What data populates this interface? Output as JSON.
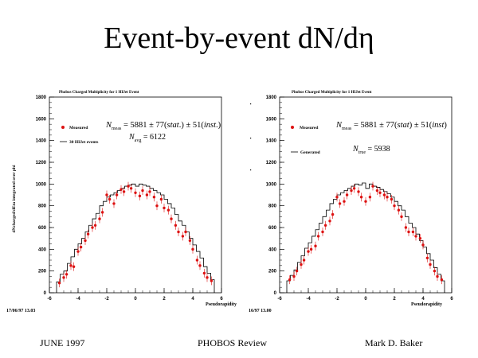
{
  "slide": {
    "title": "Event-by-event dN/dη",
    "footer_left": "JUNE 1997",
    "footer_center": "PHOBOS Review",
    "footer_right": "Mark D. Baker"
  },
  "colors": {
    "measured": "#dd1111",
    "line": "#000000"
  },
  "chart_data": [
    {
      "type": "scatter",
      "title": "Phobos Charged Multiplicity for 1 HIJet Event",
      "ylabel": "dNcharged/dEta integrated over phi",
      "xlabel": "Pseudorapidity",
      "xlim": [
        -6,
        6
      ],
      "ylim": [
        0,
        1800
      ],
      "x_ticks": [
        "-6",
        "-4",
        "-2",
        "0",
        "2",
        "4",
        "6"
      ],
      "y_ticks": [
        "0",
        "200",
        "400",
        "600",
        "800",
        "1000",
        "1200",
        "1400",
        "1600",
        "1800"
      ],
      "legend": {
        "position": "top-left",
        "entries": [
          "Measured",
          "30 HIJet events"
        ]
      },
      "annotations": [
        "N_meas = 5881 ± 77(stat.) ± 51(inst.)",
        "N_avg = 6122"
      ],
      "corner_label": "17/06/97  13.03",
      "series": [
        {
          "name": "Measured",
          "kind": "points",
          "x": [
            -5.3,
            -5.0,
            -4.8,
            -4.5,
            -4.3,
            -4.0,
            -3.8,
            -3.5,
            -3.3,
            -3.0,
            -2.8,
            -2.5,
            -2.3,
            -2.0,
            -1.8,
            -1.5,
            -1.3,
            -1.0,
            -0.8,
            -0.5,
            -0.3,
            0.0,
            0.3,
            0.5,
            0.8,
            1.0,
            1.3,
            1.5,
            1.8,
            2.0,
            2.3,
            2.5,
            2.8,
            3.0,
            3.3,
            3.5,
            3.8,
            4.0,
            4.3,
            4.5,
            4.8,
            5.0,
            5.3
          ],
          "y": [
            90,
            140,
            170,
            250,
            240,
            380,
            420,
            480,
            540,
            600,
            620,
            680,
            740,
            900,
            860,
            820,
            900,
            950,
            930,
            980,
            960,
            920,
            890,
            940,
            900,
            930,
            880,
            800,
            860,
            780,
            760,
            680,
            620,
            560,
            520,
            560,
            480,
            400,
            300,
            250,
            180,
            140,
            110
          ]
        },
        {
          "name": "30 HIJet events",
          "kind": "step",
          "x": [
            -5.5,
            -5.25,
            -5.0,
            -4.75,
            -4.5,
            -4.25,
            -4.0,
            -3.75,
            -3.5,
            -3.25,
            -3.0,
            -2.75,
            -2.5,
            -2.25,
            -2.0,
            -1.75,
            -1.5,
            -1.25,
            -1.0,
            -0.75,
            -0.5,
            -0.25,
            0.0,
            0.25,
            0.5,
            0.75,
            1.0,
            1.25,
            1.5,
            1.75,
            2.0,
            2.25,
            2.5,
            2.75,
            3.0,
            3.25,
            3.5,
            3.75,
            4.0,
            4.25,
            4.5,
            4.75,
            5.0,
            5.25
          ],
          "y": [
            100,
            170,
            200,
            270,
            330,
            400,
            450,
            500,
            560,
            620,
            680,
            730,
            800,
            840,
            880,
            900,
            920,
            940,
            960,
            980,
            990,
            1000,
            980,
            1000,
            990,
            980,
            960,
            940,
            920,
            900,
            860,
            820,
            780,
            720,
            660,
            620,
            560,
            500,
            440,
            380,
            320,
            240,
            180,
            120
          ]
        }
      ]
    },
    {
      "type": "scatter",
      "title": "Phobos Charged Multiplicity for 1 HIJet Event",
      "xlabel": "Pseudorapidity",
      "xlim": [
        -6,
        6
      ],
      "ylim": [
        0,
        1800
      ],
      "x_ticks": [
        "-6",
        "-4",
        "-2",
        "0",
        "2",
        "4",
        "6"
      ],
      "y_ticks": [
        "0",
        "200",
        "400",
        "600",
        "800",
        "1000",
        "1200",
        "1400",
        "1600",
        "1800"
      ],
      "legend": {
        "position": "top-left",
        "entries": [
          "Measured",
          "Generated"
        ]
      },
      "annotations": [
        "N_meas = 5881 ± 77(stat) ± 51(inst)",
        "N_true = 5938"
      ],
      "corner_label": "16/97  13.00",
      "series": [
        {
          "name": "Measured",
          "kind": "points",
          "x": [
            -5.3,
            -5.0,
            -4.8,
            -4.5,
            -4.3,
            -4.0,
            -3.8,
            -3.5,
            -3.3,
            -3.0,
            -2.8,
            -2.5,
            -2.3,
            -2.0,
            -1.8,
            -1.5,
            -1.3,
            -1.0,
            -0.8,
            -0.5,
            -0.3,
            0.0,
            0.3,
            0.5,
            0.8,
            1.0,
            1.3,
            1.5,
            1.8,
            2.0,
            2.3,
            2.5,
            2.8,
            3.0,
            3.3,
            3.5,
            3.8,
            4.0,
            4.3,
            4.5,
            4.8,
            5.0,
            5.3
          ],
          "y": [
            120,
            150,
            200,
            260,
            300,
            380,
            400,
            430,
            520,
            560,
            620,
            660,
            720,
            880,
            820,
            840,
            900,
            940,
            960,
            930,
            880,
            840,
            880,
            980,
            940,
            920,
            900,
            880,
            860,
            800,
            760,
            700,
            600,
            560,
            560,
            520,
            500,
            440,
            320,
            260,
            200,
            150,
            120
          ]
        },
        {
          "name": "Generated",
          "kind": "step",
          "x": [
            -5.5,
            -5.25,
            -5.0,
            -4.75,
            -4.5,
            -4.25,
            -4.0,
            -3.75,
            -3.5,
            -3.25,
            -3.0,
            -2.75,
            -2.5,
            -2.25,
            -2.0,
            -1.75,
            -1.5,
            -1.25,
            -1.0,
            -0.75,
            -0.5,
            -0.25,
            0.0,
            0.25,
            0.5,
            0.75,
            1.0,
            1.25,
            1.5,
            1.75,
            2.0,
            2.25,
            2.5,
            2.75,
            3.0,
            3.25,
            3.5,
            3.75,
            4.0,
            4.25,
            4.5,
            4.75,
            5.0,
            5.25
          ],
          "y": [
            110,
            160,
            210,
            280,
            340,
            410,
            460,
            520,
            580,
            640,
            700,
            760,
            820,
            860,
            900,
            920,
            940,
            960,
            980,
            1000,
            990,
            1010,
            960,
            1000,
            980,
            970,
            950,
            930,
            910,
            880,
            840,
            800,
            760,
            700,
            640,
            600,
            540,
            480,
            420,
            360,
            300,
            230,
            170,
            110
          ]
        }
      ]
    }
  ]
}
